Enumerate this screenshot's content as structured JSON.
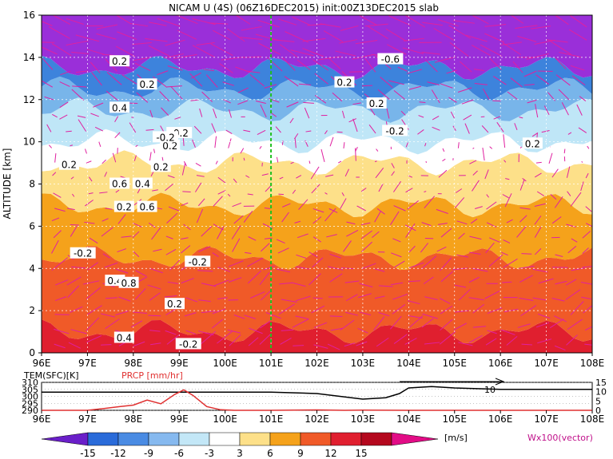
{
  "title": "NICAM U (4S) (06Z16DEC2015) init:00Z13DEC2015 slab",
  "chart_data": [
    {
      "type": "heatmap",
      "xlabel": "",
      "ylabel": "ALTITUDE [km]",
      "xlim": [
        96,
        108
      ],
      "ylim": [
        0,
        16
      ],
      "x_ticks": [
        "96E",
        "97E",
        "98E",
        "99E",
        "100E",
        "101E",
        "102E",
        "103E",
        "104E",
        "105E",
        "106E",
        "107E",
        "108E"
      ],
      "y_ticks": [
        "0",
        "2",
        "4",
        "6",
        "8",
        "10",
        "12",
        "14",
        "16"
      ],
      "marker_line_x": 101,
      "bands": [
        {
          "z0": 0,
          "z1": 1,
          "color": "#e01f2f",
          "u": 10
        },
        {
          "z0": 1,
          "z1": 4.5,
          "color": "#f05a28",
          "u": 10
        },
        {
          "z0": 4.5,
          "z1": 7,
          "color": "#f5a21b",
          "u": 7
        },
        {
          "z0": 7,
          "z1": 9,
          "color": "#fde089",
          "u": 4
        },
        {
          "z0": 9,
          "z1": 10,
          "color": "#ffffff",
          "u": 0
        },
        {
          "z0": 10,
          "z1": 11.5,
          "color": "#bfe6f7",
          "u": -4
        },
        {
          "z0": 11.5,
          "z1": 12.5,
          "color": "#78b5ea",
          "u": -7
        },
        {
          "z0": 12.5,
          "z1": 13.5,
          "color": "#3d83dc",
          "u": -10
        },
        {
          "z0": 13.5,
          "z1": 16,
          "color": "#9a2fd9",
          "u": -16
        }
      ],
      "contour_labels": [
        {
          "text": "0.2",
          "x": 97.7,
          "y": 13.8
        },
        {
          "text": "0.2",
          "x": 98.3,
          "y": 12.7
        },
        {
          "text": "0.4",
          "x": 97.7,
          "y": 11.6
        },
        {
          "text": "-0.2",
          "x": 99.0,
          "y": 10.4
        },
        {
          "text": "0.2",
          "x": 98.8,
          "y": 9.8
        },
        {
          "text": "0.2",
          "x": 96.6,
          "y": 8.9
        },
        {
          "text": "0.2",
          "x": 98.6,
          "y": 8.8
        },
        {
          "text": "0.6",
          "x": 97.7,
          "y": 8.0
        },
        {
          "text": "0.4",
          "x": 98.2,
          "y": 8.0
        },
        {
          "text": "0.2",
          "x": 97.8,
          "y": 6.9
        },
        {
          "text": "0.6",
          "x": 98.3,
          "y": 6.9
        },
        {
          "text": "-0.2",
          "x": 96.9,
          "y": 4.7
        },
        {
          "text": "-0.2",
          "x": 99.4,
          "y": 4.3
        },
        {
          "text": "0.4",
          "x": 97.6,
          "y": 3.4
        },
        {
          "text": "0.8",
          "x": 97.9,
          "y": 3.3
        },
        {
          "text": "0.2",
          "x": 98.9,
          "y": 2.3
        },
        {
          "text": "0.4",
          "x": 97.8,
          "y": 0.7
        },
        {
          "text": "-0.2",
          "x": 99.2,
          "y": 0.4
        },
        {
          "text": "-0.2",
          "x": 98.7,
          "y": 10.2
        },
        {
          "text": "-0.6",
          "x": 103.6,
          "y": 13.9
        },
        {
          "text": "0.2",
          "x": 102.6,
          "y": 12.8
        },
        {
          "text": "0.2",
          "x": 103.3,
          "y": 11.8
        },
        {
          "text": "-0.2",
          "x": 103.7,
          "y": 10.5
        },
        {
          "text": "0.2",
          "x": 106.7,
          "y": 9.9
        }
      ],
      "colorbar": {
        "labels": [
          "-15",
          "-12",
          "-9",
          "-6",
          "-3",
          "3",
          "6",
          "9",
          "12",
          "15"
        ],
        "colors": [
          "#6a1fc9",
          "#2a6bd9",
          "#4a8be3",
          "#86b9ef",
          "#c3e7f7",
          "#ffffff",
          "#fde089",
          "#f5a21b",
          "#f05a28",
          "#e01f2f",
          "#b4081e",
          "#e20c86"
        ],
        "unit": "[m/s]",
        "vector_label": "Wx100(vector)"
      }
    },
    {
      "type": "line",
      "x_ticks": [
        "96E",
        "97E",
        "98E",
        "99E",
        "100E",
        "101E",
        "102E",
        "103E",
        "104E",
        "105E",
        "106E",
        "107E",
        "108E"
      ],
      "xlim": [
        96,
        108
      ],
      "left_axis": {
        "label": "TEM(SFC)[K]",
        "ticks": [
          "290",
          "295",
          "300",
          "305",
          "310"
        ],
        "ylim": [
          290,
          310
        ]
      },
      "right_axis": {
        "label": "PRCP [mm/hr]",
        "ticks": [
          "0",
          "5",
          "10",
          "15"
        ],
        "ylim": [
          0,
          15
        ]
      },
      "series": [
        {
          "name": "TEM(SFC)[K]",
          "color": "#000000",
          "x": [
            96,
            97,
            98,
            99,
            100,
            101,
            102,
            102.5,
            103,
            103.5,
            103.8,
            104,
            104.5,
            105,
            106,
            107,
            108
          ],
          "y": [
            303,
            303,
            303,
            303,
            303,
            303,
            302,
            300,
            298,
            299,
            302,
            306,
            307,
            306,
            305,
            305,
            305
          ]
        },
        {
          "name": "PRCP [mm/hr]",
          "color": "#e03030",
          "x": [
            96,
            97,
            97.3,
            97.7,
            98,
            98.3,
            98.6,
            98.9,
            99.1,
            99.3,
            99.6,
            99.9,
            100.2,
            101,
            102,
            102.6,
            103,
            104,
            108
          ],
          "y": [
            0,
            0,
            0.8,
            2.0,
            2.8,
            5.5,
            3.5,
            8.5,
            11.0,
            8.0,
            2.0,
            0.3,
            0,
            0,
            0.2,
            0,
            0.1,
            0,
            0
          ]
        }
      ],
      "annotation": "10"
    }
  ]
}
